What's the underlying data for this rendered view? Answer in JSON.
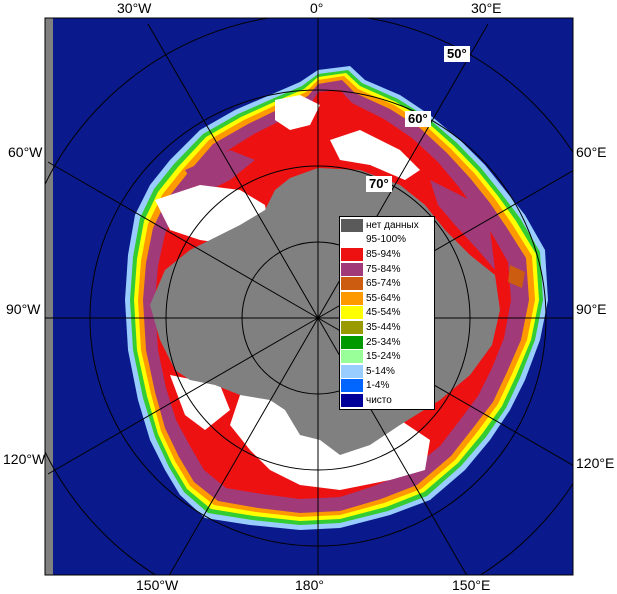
{
  "map": {
    "longitude_labels": [
      {
        "id": "lon-30w",
        "text": "30°W"
      },
      {
        "id": "lon-0",
        "text": "0°"
      },
      {
        "id": "lon-30e",
        "text": "30°E"
      },
      {
        "id": "lon-60w",
        "text": "60°W"
      },
      {
        "id": "lon-60e",
        "text": "60°E"
      },
      {
        "id": "lon-90w",
        "text": "90°W"
      },
      {
        "id": "lon-90e",
        "text": "90°E"
      },
      {
        "id": "lon-120w",
        "text": "120°W"
      },
      {
        "id": "lon-120e",
        "text": "120°E"
      },
      {
        "id": "lon-150w",
        "text": "150°W"
      },
      {
        "id": "lon-180",
        "text": "180°"
      },
      {
        "id": "lon-150e",
        "text": "150°E"
      }
    ],
    "latitude_labels": [
      {
        "id": "lat-50",
        "text": "50°"
      },
      {
        "id": "lat-60",
        "text": "60°"
      },
      {
        "id": "lat-70",
        "text": "70°"
      }
    ],
    "colors": {
      "ocean": "#0a1a8c",
      "no_data": "#808080",
      "frame": "#808080"
    }
  },
  "legend": {
    "items": [
      {
        "label": "нет данных",
        "color": "#5a5a5a"
      },
      {
        "label": "95-100%",
        "color": "#ffffff"
      },
      {
        "label": "85-94%",
        "color": "#ee1111"
      },
      {
        "label": "75-84%",
        "color": "#a03a78"
      },
      {
        "label": "65-74%",
        "color": "#cc5c10"
      },
      {
        "label": "55-64%",
        "color": "#ff9900"
      },
      {
        "label": "45-54%",
        "color": "#ffff00"
      },
      {
        "label": "35-44%",
        "color": "#999900"
      },
      {
        "label": "25-34%",
        "color": "#009900"
      },
      {
        "label": "15-24%",
        "color": "#99ff99"
      },
      {
        "label": "5-14%",
        "color": "#99ccff"
      },
      {
        "label": "1-4%",
        "color": "#0066ff"
      },
      {
        "label": "чисто",
        "color": "#000099"
      }
    ]
  }
}
